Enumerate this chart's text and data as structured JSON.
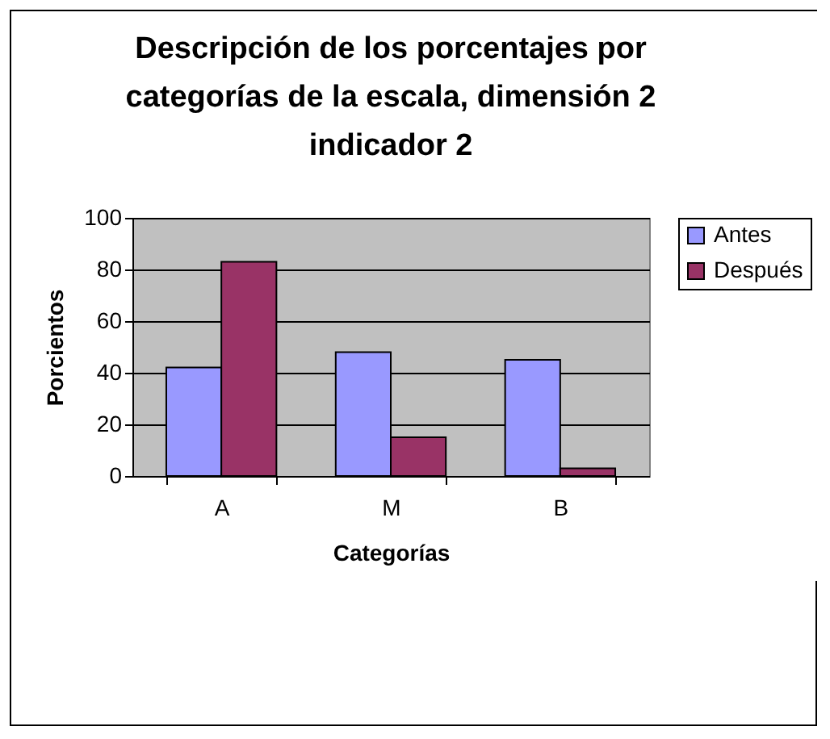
{
  "chart_data": {
    "type": "bar",
    "title": "Descripción de los porcentajes por categorías de la escala, dimensión 2 indicador 2",
    "xlabel": "Categorías",
    "ylabel": "Porcientos",
    "categories": [
      "A",
      "M",
      "B"
    ],
    "series": [
      {
        "name": "Antes",
        "color": "#9999ff",
        "values": [
          42,
          48,
          45
        ]
      },
      {
        "name": "Después",
        "color": "#993366",
        "values": [
          83,
          15,
          3
        ]
      }
    ],
    "ylim": [
      0,
      100
    ],
    "yticks": [
      0,
      20,
      40,
      60,
      80,
      100
    ],
    "grid": "y",
    "legend": "right"
  }
}
